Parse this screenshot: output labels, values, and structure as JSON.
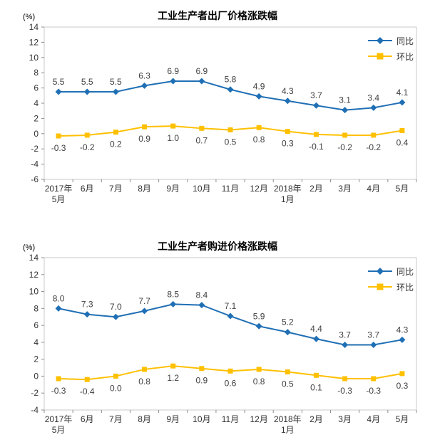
{
  "chart_data": [
    {
      "type": "line",
      "title": "工业生产者出厂价格涨跌幅",
      "unit": "(%)",
      "grid": false,
      "legend_position": "top-right-inside",
      "categories": [
        "2017年\n5月",
        "6月",
        "7月",
        "8月",
        "9月",
        "10月",
        "11月",
        "12月",
        "2018年\n1月",
        "2月",
        "3月",
        "4月",
        "5月"
      ],
      "ylim": [
        -6,
        14
      ],
      "ytick_step": 2,
      "series": [
        {
          "name": "同比",
          "slug": "yoy",
          "color": "#1F6FB5",
          "marker": "diamond",
          "label_position": "above",
          "values": [
            5.5,
            5.5,
            5.5,
            6.3,
            6.9,
            6.9,
            5.8,
            4.9,
            4.3,
            3.7,
            3.1,
            3.4,
            4.1
          ]
        },
        {
          "name": "环比",
          "slug": "mom",
          "color": "#FFC000",
          "marker": "square",
          "label_position": "below",
          "values": [
            -0.3,
            -0.2,
            0.2,
            0.9,
            1.0,
            0.7,
            0.5,
            0.8,
            0.3,
            -0.1,
            -0.2,
            -0.2,
            0.4
          ]
        }
      ]
    },
    {
      "type": "line",
      "title": "工业生产者购进价格涨跌幅",
      "unit": "(%)",
      "grid": false,
      "legend_position": "top-right-inside",
      "categories": [
        "2017年\n5月",
        "6月",
        "7月",
        "8月",
        "9月",
        "10月",
        "11月",
        "12月",
        "2018年\n1月",
        "2月",
        "3月",
        "4月",
        "5月"
      ],
      "ylim": [
        -4,
        14
      ],
      "ytick_step": 2,
      "series": [
        {
          "name": "同比",
          "slug": "yoy",
          "color": "#1F6FB5",
          "marker": "diamond",
          "label_position": "above",
          "values": [
            8.0,
            7.3,
            7.0,
            7.7,
            8.5,
            8.4,
            7.1,
            5.9,
            5.2,
            4.4,
            3.7,
            3.7,
            4.3
          ]
        },
        {
          "name": "环比",
          "slug": "mom",
          "color": "#FFC000",
          "marker": "square",
          "label_position": "below",
          "values": [
            -0.3,
            -0.4,
            0.0,
            0.8,
            1.2,
            0.9,
            0.6,
            0.8,
            0.5,
            0.1,
            -0.3,
            -0.3,
            0.3
          ]
        }
      ]
    }
  ],
  "style": {
    "plot_border_color": "#C9C9C9",
    "tick_color": "#8C8C8C",
    "axis_text_color": "#333333",
    "data_label_color": "#404040"
  }
}
